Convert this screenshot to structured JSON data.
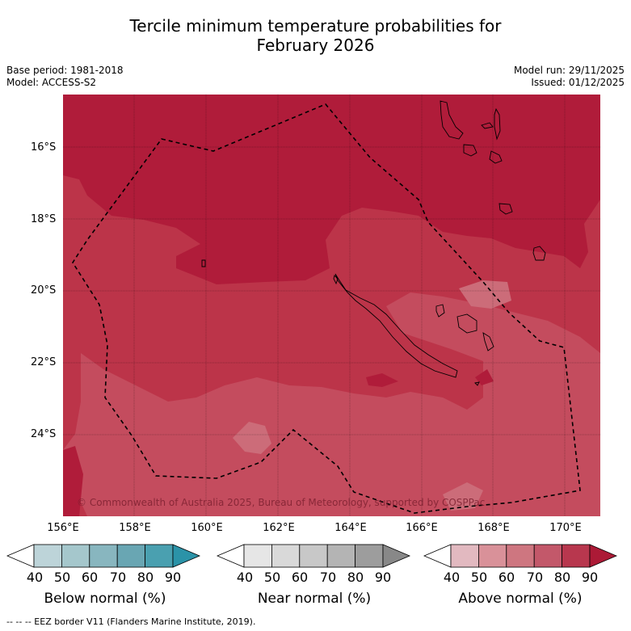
{
  "title_line1": "Tercile minimum temperature probabilities for",
  "title_line2": "February 2026",
  "base_period": "Base period: 1981-2018",
  "model": "Model: ACCESS-S2",
  "model_run": "Model run: 29/11/2025",
  "issued": "Issued: 01/12/2025",
  "latitudes": [
    "16°S",
    "18°S",
    "20°S",
    "22°S",
    "24°S"
  ],
  "longitudes": [
    "156°E",
    "158°E",
    "160°E",
    "162°E",
    "164°E",
    "166°E",
    "168°E",
    "170°E"
  ],
  "copyright": "© Commonwealth of Australia 2025, Bureau of Meteorology, supported by COSPPac",
  "colorbars": [
    {
      "title": "Below normal (%)",
      "ticks": [
        "40",
        "50",
        "60",
        "70",
        "80",
        "90"
      ],
      "colors": [
        "#ffffff",
        "#bdd4d9",
        "#a5c7cc",
        "#88b6bf",
        "#69a6b3",
        "#4aa0b0",
        "#2b93a8"
      ]
    },
    {
      "title": "Near normal (%)",
      "ticks": [
        "40",
        "50",
        "60",
        "70",
        "80",
        "90"
      ],
      "colors": [
        "#ffffff",
        "#e6e6e6",
        "#d9d9d9",
        "#c8c8c8",
        "#b4b4b4",
        "#9d9d9d",
        "#888888"
      ]
    },
    {
      "title": "Above normal (%)",
      "ticks": [
        "40",
        "50",
        "60",
        "70",
        "80",
        "90"
      ],
      "colors": [
        "#ffffff",
        "#e2b9c0",
        "#d99199",
        "#ce7680",
        "#c3586a",
        "#b8374e",
        "#ac1a36"
      ]
    }
  ],
  "map_colors": {
    "p90": "#b01c3a",
    "p80": "#bc3449",
    "p70": "#c44c5e",
    "p60": "#cc6c79",
    "eez": "#000000",
    "land": "#000000"
  },
  "footer": "--  --  -- EEZ border V11 (Flanders Marine Institute, 2019)."
}
